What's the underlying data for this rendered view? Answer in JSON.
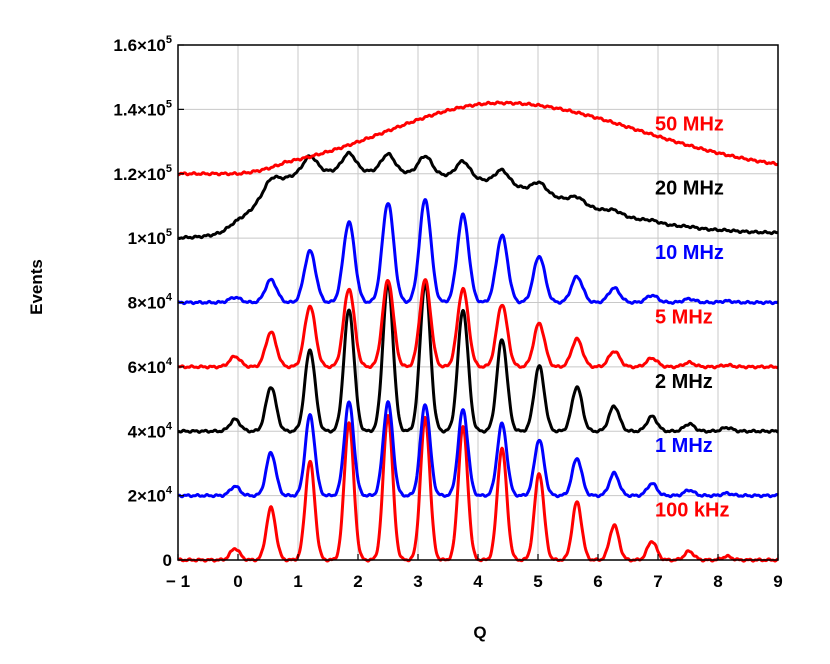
{
  "chart_data": {
    "type": "line",
    "title": "",
    "xlabel": "Q",
    "ylabel": "Events",
    "xlim": [
      -1,
      9
    ],
    "ylim": [
      0,
      160000
    ],
    "grid": true,
    "x_ticks": [
      -1,
      0,
      1,
      2,
      3,
      4,
      5,
      6,
      7,
      8,
      9
    ],
    "x_tick_labels": [
      "− 1",
      "0",
      "1",
      "2",
      "3",
      "4",
      "5",
      "6",
      "7",
      "8",
      "9"
    ],
    "y_ticks": [
      {
        "value": 0,
        "mantissa": "0",
        "sup": ""
      },
      {
        "value": 20000,
        "mantissa": "2×10",
        "sup": "4"
      },
      {
        "value": 40000,
        "mantissa": "4×10",
        "sup": "4"
      },
      {
        "value": 60000,
        "mantissa": "6×10",
        "sup": "4"
      },
      {
        "value": 80000,
        "mantissa": "8×10",
        "sup": "4"
      },
      {
        "value": 100000,
        "mantissa": "1×10",
        "sup": "5"
      },
      {
        "value": 120000,
        "mantissa": "1.2×10",
        "sup": "5"
      },
      {
        "value": 140000,
        "mantissa": "1.4×10",
        "sup": "5"
      },
      {
        "value": 160000,
        "mantissa": "1.6×10",
        "sup": "5"
      }
    ],
    "series": [
      {
        "name": "100 kHz",
        "color": "#ff0000",
        "offset": 0,
        "baseline": 0,
        "plateau": 0,
        "tail": 0,
        "amp": 45000,
        "width": 0.078,
        "peaks": [
          [
            -0.05,
            0.08
          ],
          [
            0.55,
            0.36
          ],
          [
            1.2,
            0.68
          ],
          [
            1.85,
            0.95
          ],
          [
            2.5,
            1.0
          ],
          [
            3.12,
            0.98
          ],
          [
            3.75,
            0.92
          ],
          [
            4.4,
            0.77
          ],
          [
            5.02,
            0.6
          ],
          [
            5.65,
            0.4
          ],
          [
            6.27,
            0.24
          ],
          [
            6.9,
            0.13
          ],
          [
            7.52,
            0.06
          ],
          [
            8.15,
            0.025
          ]
        ]
      },
      {
        "name": "1 MHz",
        "color": "#0000ff",
        "offset": 20000,
        "baseline": 0,
        "plateau": 0,
        "tail": 0,
        "amp": 29000,
        "width": 0.08,
        "peaks": [
          [
            -0.05,
            0.1
          ],
          [
            0.55,
            0.46
          ],
          [
            1.2,
            0.86
          ],
          [
            1.85,
            1.0
          ],
          [
            2.5,
            1.0
          ],
          [
            3.12,
            0.98
          ],
          [
            3.75,
            0.92
          ],
          [
            4.4,
            0.77
          ],
          [
            5.02,
            0.6
          ],
          [
            5.65,
            0.4
          ],
          [
            6.27,
            0.24
          ],
          [
            6.9,
            0.13
          ],
          [
            7.52,
            0.06
          ],
          [
            8.15,
            0.025
          ]
        ]
      },
      {
        "name": "2 MHz",
        "color": "#000000",
        "offset": 40000,
        "baseline": 0,
        "plateau": 0,
        "tail": 0,
        "amp": 46000,
        "width": 0.085,
        "peaks": [
          [
            -0.05,
            0.08
          ],
          [
            0.55,
            0.3
          ],
          [
            1.2,
            0.55
          ],
          [
            1.85,
            0.82
          ],
          [
            2.5,
            1.0
          ],
          [
            3.12,
            1.0
          ],
          [
            3.75,
            0.82
          ],
          [
            4.4,
            0.62
          ],
          [
            5.02,
            0.44
          ],
          [
            5.65,
            0.3
          ],
          [
            6.27,
            0.17
          ],
          [
            6.9,
            0.1
          ],
          [
            7.52,
            0.05
          ],
          [
            8.15,
            0.025
          ]
        ]
      },
      {
        "name": "5 MHz",
        "color": "#ff0000",
        "offset": 60000,
        "baseline": 0,
        "plateau": 0,
        "tail": 0,
        "amp": 27000,
        "width": 0.09,
        "peaks": [
          [
            -0.05,
            0.12
          ],
          [
            0.55,
            0.4
          ],
          [
            1.2,
            0.7
          ],
          [
            1.85,
            0.9
          ],
          [
            2.5,
            1.0
          ],
          [
            3.12,
            1.0
          ],
          [
            3.75,
            0.9
          ],
          [
            4.4,
            0.72
          ],
          [
            5.02,
            0.5
          ],
          [
            5.65,
            0.32
          ],
          [
            6.27,
            0.18
          ],
          [
            6.9,
            0.1
          ],
          [
            7.52,
            0.05
          ],
          [
            8.15,
            0.02
          ]
        ]
      },
      {
        "name": "10 MHz",
        "color": "#0000ff",
        "offset": 80000,
        "baseline": 0,
        "plateau": 0,
        "tail": 0,
        "amp": 32000,
        "width": 0.095,
        "peaks": [
          [
            -0.05,
            0.05
          ],
          [
            0.55,
            0.22
          ],
          [
            1.2,
            0.5
          ],
          [
            1.85,
            0.78
          ],
          [
            2.5,
            0.97
          ],
          [
            3.12,
            1.0
          ],
          [
            3.75,
            0.85
          ],
          [
            4.4,
            0.65
          ],
          [
            5.02,
            0.45
          ],
          [
            5.65,
            0.25
          ],
          [
            6.27,
            0.14
          ],
          [
            6.9,
            0.07
          ],
          [
            7.52,
            0.035
          ],
          [
            8.15,
            0.015
          ]
        ]
      },
      {
        "name": "20 MHz",
        "color": "#000000",
        "offset": 100000,
        "baseline": 0,
        "plateau": 20000,
        "tail": 1200,
        "amp": 5500,
        "width": 0.11,
        "peaks": [
          [
            -0.05,
            0.2
          ],
          [
            0.55,
            0.55
          ],
          [
            1.2,
            0.9
          ],
          [
            1.85,
            1.0
          ],
          [
            2.5,
            1.0
          ],
          [
            3.12,
            1.0
          ],
          [
            3.75,
            0.9
          ],
          [
            4.4,
            0.75
          ],
          [
            5.02,
            0.55
          ],
          [
            5.65,
            0.35
          ],
          [
            6.27,
            0.2
          ],
          [
            6.9,
            0.1
          ],
          [
            7.52,
            0.05
          ],
          [
            8.15,
            0.02
          ]
        ]
      },
      {
        "name": "50 MHz",
        "color": "#ff0000",
        "offset": 120000,
        "baseline": 0,
        "plateau": 0,
        "tail": 0,
        "amp": 0,
        "width": 0.1,
        "peaks": [],
        "hump": {
          "height": 22000,
          "center": 4.4,
          "sigma_left": 1.9,
          "sigma_right": 2.3,
          "start": 0.0,
          "end_value": 2500
        }
      }
    ],
    "annotations": [
      {
        "text": "50 MHz",
        "color": "#ff0000",
        "x": 6.95,
        "y": 133500
      },
      {
        "text": "20 MHz",
        "color": "#000000",
        "x": 6.95,
        "y": 113500
      },
      {
        "text": "10 MHz",
        "color": "#0000ff",
        "x": 6.95,
        "y": 93500
      },
      {
        "text": "5 MHz",
        "color": "#ff0000",
        "x": 6.95,
        "y": 73500
      },
      {
        "text": "2 MHz",
        "color": "#000000",
        "x": 6.95,
        "y": 53500
      },
      {
        "text": "1 MHz",
        "color": "#0000ff",
        "x": 6.95,
        "y": 33500
      },
      {
        "text": "100 kHz",
        "color": "#ff0000",
        "x": 6.95,
        "y": 13500
      }
    ]
  }
}
